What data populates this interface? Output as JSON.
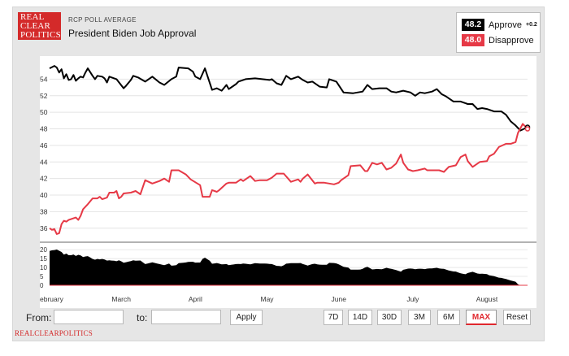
{
  "header": {
    "logo_lines": [
      "REAL",
      "CLEAR",
      "POLITICS"
    ],
    "kicker": "RCP POLL AVERAGE",
    "title": "President Biden Job Approval"
  },
  "legend": {
    "approve": {
      "value": "48.2",
      "label": "Approve",
      "delta": "+0.2",
      "color": "#000000"
    },
    "disapprove": {
      "value": "48.0",
      "label": "Disapprove",
      "color": "#e63946"
    }
  },
  "chart_data": {
    "type": "line",
    "x_labels": [
      "ebruary",
      "March",
      "April",
      "May",
      "June",
      "July",
      "August"
    ],
    "y_ticks": [
      36,
      38,
      40,
      42,
      44,
      46,
      48,
      50,
      52,
      54
    ],
    "ylim": [
      35,
      56
    ],
    "series": [
      {
        "name": "Approve",
        "color": "#000000",
        "x": [
          0,
          2,
          3,
          4,
          5,
          6,
          7,
          8,
          9,
          10,
          11,
          12,
          13,
          14,
          15,
          16,
          18,
          19,
          20,
          22,
          23,
          24,
          25,
          28,
          31,
          32,
          34,
          35,
          37,
          40,
          43,
          46,
          48,
          51,
          53,
          54,
          58,
          60,
          61,
          63,
          65,
          68,
          70,
          72,
          74,
          75,
          78,
          79,
          82,
          86,
          89,
          92,
          93,
          95,
          97,
          99,
          101,
          104,
          106,
          108,
          110,
          113,
          116,
          117,
          120,
          123,
          127,
          131,
          133,
          135,
          138,
          141,
          143,
          145,
          148,
          151,
          153,
          155,
          157,
          160,
          162,
          164,
          166,
          169,
          172,
          175,
          177,
          179,
          181,
          183,
          186,
          189,
          191,
          193,
          195,
          197,
          200
        ],
        "values": [
          55.3,
          55.6,
          55.4,
          54.8,
          55.2,
          54.1,
          54.6,
          53.9,
          54.0,
          54.5,
          53.8,
          54.1,
          54.3,
          54.2,
          54.8,
          55.3,
          54.4,
          54.0,
          54.4,
          54.3,
          54.1,
          53.6,
          54.3,
          54.0,
          52.9,
          53.2,
          53.9,
          54.4,
          54.2,
          53.7,
          54.3,
          53.6,
          53.3,
          54.0,
          54.3,
          55.4,
          55.3,
          54.9,
          54.3,
          54.0,
          55.3,
          52.7,
          52.9,
          52.6,
          53.3,
          52.8,
          53.4,
          53.7,
          54.0,
          54.1,
          54.0,
          53.9,
          54.0,
          53.5,
          53.3,
          54.4,
          54.0,
          54.3,
          53.9,
          53.6,
          53.7,
          53.1,
          53.0,
          54.0,
          53.7,
          52.4,
          52.3,
          52.5,
          53.3,
          52.8,
          52.9,
          52.9,
          52.5,
          52.4,
          52.6,
          52.4,
          52.0,
          52.4,
          52.3,
          52.5,
          52.8,
          52.2,
          51.9,
          51.3,
          51.3,
          51.0,
          51.0,
          50.4,
          50.5,
          50.4,
          50.1,
          50.1,
          49.7,
          48.9,
          48.4,
          47.8,
          48.2
        ]
      },
      {
        "name": "Disapprove",
        "color": "#e63946",
        "x": [
          0,
          1,
          2,
          3,
          4,
          5,
          6,
          7,
          8,
          10,
          11,
          12,
          13,
          14,
          16,
          18,
          19,
          20,
          21,
          22,
          24,
          25,
          27,
          28,
          29,
          30,
          31,
          34,
          36,
          38,
          40,
          43,
          46,
          48,
          50,
          51,
          54,
          57,
          59,
          63,
          64,
          67,
          68,
          70,
          71,
          74,
          75,
          78,
          80,
          81,
          84,
          86,
          88,
          91,
          93,
          95,
          98,
          101,
          104,
          105,
          106,
          108,
          111,
          112,
          115,
          119,
          121,
          122,
          125,
          126,
          130,
          132,
          133,
          135,
          137,
          139,
          141,
          143,
          145,
          147,
          148,
          150,
          152,
          154,
          157,
          158,
          161,
          163,
          165,
          167,
          170,
          172,
          174,
          175,
          177,
          180,
          183,
          184,
          186,
          188,
          191,
          193,
          195,
          196,
          198,
          200
        ],
        "values": [
          36.0,
          35.8,
          35.9,
          35.3,
          35.4,
          36.5,
          36.9,
          36.8,
          37.0,
          37.2,
          37.3,
          37.0,
          37.5,
          38.3,
          38.9,
          39.6,
          39.6,
          39.6,
          39.8,
          39.5,
          39.7,
          40.3,
          40.3,
          40.5,
          39.6,
          39.8,
          40.2,
          40.3,
          40.5,
          40.1,
          41.8,
          41.4,
          41.7,
          42.0,
          41.6,
          43.0,
          43.0,
          42.5,
          41.9,
          41.2,
          39.8,
          39.8,
          40.6,
          40.4,
          40.6,
          41.4,
          41.5,
          41.5,
          41.9,
          41.7,
          42.3,
          41.7,
          41.8,
          41.8,
          42.1,
          42.6,
          42.6,
          41.6,
          41.9,
          41.6,
          42.0,
          42.5,
          41.4,
          41.5,
          41.5,
          41.3,
          41.5,
          41.8,
          42.4,
          43.5,
          43.6,
          42.9,
          42.9,
          43.9,
          43.7,
          43.9,
          43.1,
          43.3,
          43.8,
          44.9,
          43.9,
          43.1,
          42.9,
          43.0,
          43.2,
          43.0,
          43.0,
          43.0,
          42.8,
          43.4,
          43.6,
          44.6,
          44.9,
          44.1,
          43.4,
          44.0,
          44.1,
          44.7,
          45.0,
          45.8,
          46.2,
          46.2,
          46.4,
          47.5,
          48.6,
          48.0
        ]
      }
    ],
    "navigator": {
      "y_ticks": [
        0,
        5,
        10,
        15,
        20
      ],
      "ylim": [
        0,
        21
      ],
      "fill": "#000000"
    }
  },
  "controls": {
    "from_label": "From:",
    "to_label": "to:",
    "from_value": "",
    "to_value": "",
    "apply_label": "Apply",
    "range_buttons": [
      "7D",
      "14D",
      "30D",
      "3M",
      "6M",
      "MAX"
    ],
    "active_range": "MAX",
    "reset_label": "Reset"
  },
  "footer": {
    "text": "REALCLEARPOLITICS"
  }
}
